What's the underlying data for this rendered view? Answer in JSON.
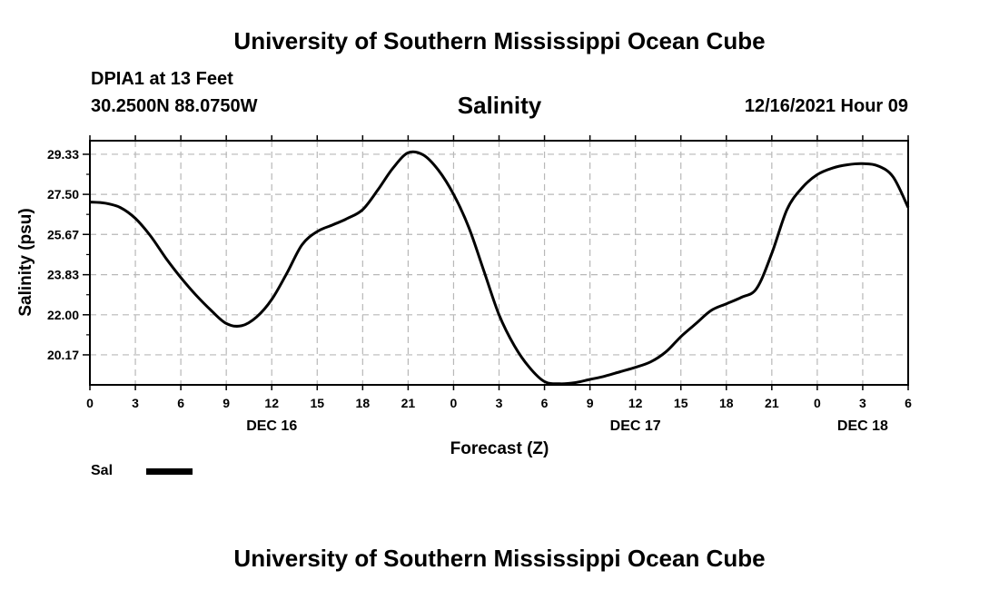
{
  "page": {
    "main_title": "University of Southern Mississippi Ocean Cube",
    "footer_title": "University of Southern Mississippi Ocean Cube",
    "station": "DPIA1 at 13 Feet",
    "coordinates": "30.2500N  88.0750W",
    "timestamp": "12/16/2021 Hour 09"
  },
  "chart_data": {
    "type": "line",
    "title": "Salinity",
    "xlabel": "Forecast (Z)",
    "ylabel": "Salinity (psu)",
    "xlim": [
      0,
      54
    ],
    "ylim": [
      18.8,
      29.95
    ],
    "x_tick_values": [
      0,
      3,
      6,
      9,
      12,
      15,
      18,
      21,
      24,
      27,
      30,
      33,
      36,
      39,
      42,
      45,
      48,
      51,
      54
    ],
    "x_tick_labels": [
      "0",
      "3",
      "6",
      "9",
      "12",
      "15",
      "18",
      "21",
      "0",
      "3",
      "6",
      "9",
      "12",
      "15",
      "18",
      "21",
      "0",
      "3",
      "6"
    ],
    "y_tick_values": [
      20.17,
      22.0,
      23.83,
      25.67,
      27.5,
      29.33
    ],
    "y_tick_labels": [
      "20.17",
      "22.00",
      "23.83",
      "25.67",
      "27.50",
      "29.33"
    ],
    "date_labels": [
      {
        "x": 12,
        "label": "DEC 16"
      },
      {
        "x": 36,
        "label": "DEC 17"
      },
      {
        "x": 51,
        "label": "DEC 18"
      }
    ],
    "grid": true,
    "legend": "bottom-left",
    "series": [
      {
        "name": "Sal",
        "color": "#000000",
        "x": [
          0,
          1,
          2,
          3,
          4,
          5,
          6,
          7,
          8,
          9,
          10,
          11,
          12,
          13,
          14,
          15,
          16,
          17,
          18,
          19,
          20,
          21,
          22,
          23,
          24,
          25,
          26,
          27,
          28,
          29,
          30,
          31,
          32,
          33,
          34,
          35,
          36,
          37,
          38,
          39,
          40,
          41,
          42,
          43,
          44,
          45,
          46,
          47,
          48,
          49,
          50,
          51,
          52,
          53,
          54
        ],
        "values": [
          27.15,
          27.1,
          26.9,
          26.4,
          25.6,
          24.6,
          23.7,
          22.9,
          22.2,
          21.6,
          21.5,
          21.9,
          22.7,
          23.9,
          25.2,
          25.8,
          26.1,
          26.4,
          26.8,
          27.7,
          28.7,
          29.4,
          29.3,
          28.6,
          27.5,
          26.0,
          24.0,
          22.0,
          20.6,
          19.6,
          18.95,
          18.85,
          18.9,
          19.05,
          19.2,
          19.4,
          19.6,
          19.85,
          20.3,
          21.0,
          21.6,
          22.2,
          22.5,
          22.8,
          23.2,
          24.8,
          26.8,
          27.8,
          28.4,
          28.7,
          28.85,
          28.9,
          28.8,
          28.3,
          26.9
        ]
      }
    ]
  },
  "legend": {
    "label": "Sal"
  }
}
